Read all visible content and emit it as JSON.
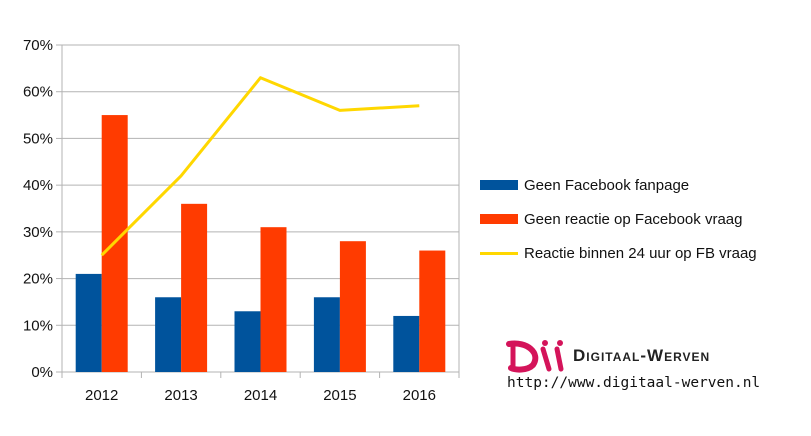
{
  "chart_data": {
    "type": "bar",
    "categories": [
      "2012",
      "2013",
      "2014",
      "2015",
      "2016"
    ],
    "series": [
      {
        "name": "Geen Facebook fanpage",
        "kind": "bar",
        "color": "#00539c",
        "values": [
          21,
          16,
          13,
          16,
          12
        ]
      },
      {
        "name": "Geen reactie op Facebook vraag",
        "kind": "bar",
        "color": "#ff3b00",
        "values": [
          55,
          36,
          31,
          28,
          26
        ]
      },
      {
        "name": "Reactie binnen 24 uur op FB vraag",
        "kind": "line",
        "color": "#ffd700",
        "values": [
          25,
          42,
          63,
          56,
          57
        ]
      }
    ],
    "ylim": [
      0,
      70
    ],
    "yticks": [
      0,
      10,
      20,
      30,
      40,
      50,
      60,
      70
    ],
    "ytick_labels": [
      "0%",
      "10%",
      "20%",
      "30%",
      "40%",
      "50%",
      "60%",
      "70%"
    ],
    "title": "",
    "xlabel": "",
    "ylabel": "",
    "grid": true,
    "legend_position": "right"
  },
  "logo": {
    "text": "Digitaal-Werven",
    "colors": {
      "magenta": "#d4145a",
      "gray": "#555555"
    }
  },
  "url": "http://www.digitaal-werven.nl"
}
